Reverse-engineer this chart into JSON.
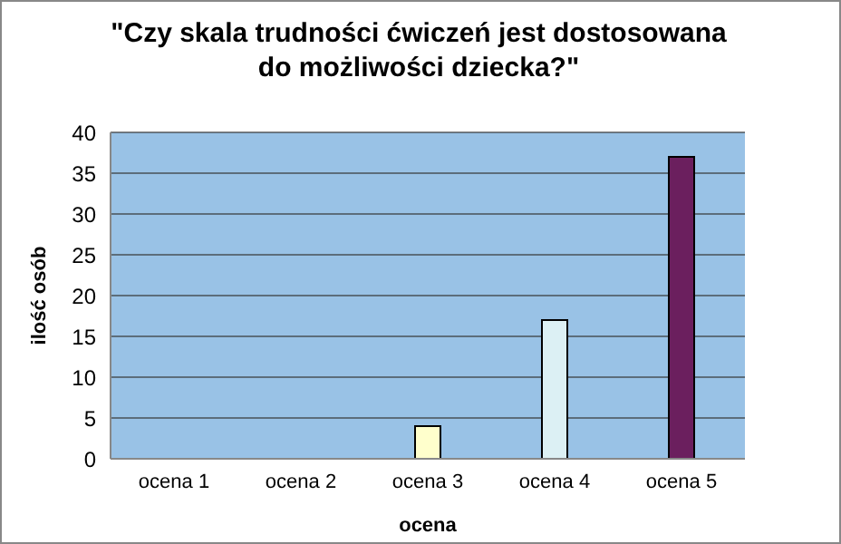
{
  "chart_data": {
    "type": "bar",
    "title": "\"Czy skala trudności ćwiczeń jest dostosowana do możliwości dziecka?\"",
    "xlabel": "ocena",
    "ylabel": "ilość osób",
    "categories": [
      "ocena 1",
      "ocena 2",
      "ocena 3",
      "ocena 4",
      "ocena 5"
    ],
    "values": [
      0,
      0,
      4,
      17,
      37
    ],
    "colors": [
      "#ffffcc",
      "#ffffcc",
      "#ffffcc",
      "#dcf0f4",
      "#6b1f5e"
    ],
    "ylim": [
      0,
      40
    ],
    "yticks": [
      0,
      5,
      10,
      15,
      20,
      25,
      30,
      35,
      40
    ],
    "grid": "y",
    "legend": false
  }
}
